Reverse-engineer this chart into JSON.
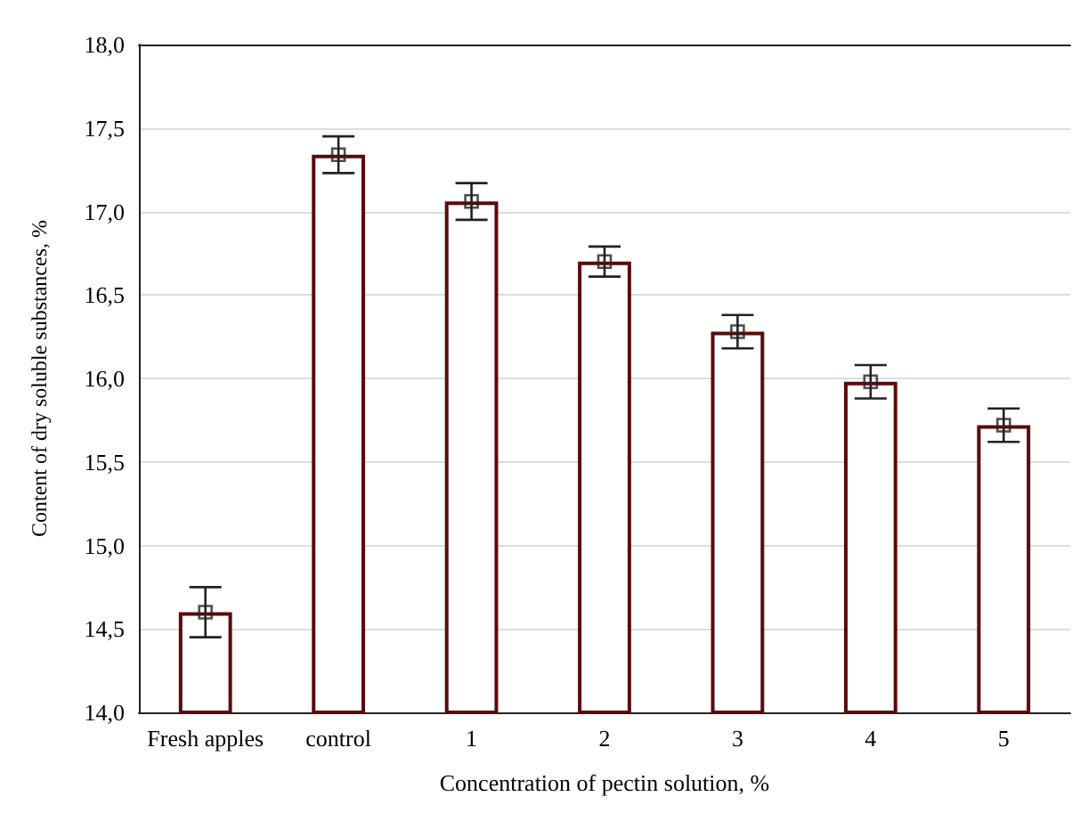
{
  "chart_data": {
    "type": "bar",
    "xlabel": "Concentration of pectin solution, %",
    "ylabel": "Content of dry soluble substances, %",
    "categories": [
      "Fresh apples",
      "control",
      "1",
      "2",
      "3",
      "4",
      "5"
    ],
    "series": [
      {
        "color": "#5a0a0a",
        "values": [
          14.6,
          17.34,
          17.06,
          16.7,
          16.28,
          15.98,
          15.72
        ],
        "errors": [
          0.15,
          0.11,
          0.11,
          0.09,
          0.1,
          0.1,
          0.1
        ]
      },
      {
        "type": "scatter",
        "color": "#222222",
        "marker": "square",
        "x": [
          "Fresh apples",
          "control",
          "1",
          "2",
          "3",
          "4",
          "5"
        ],
        "values": [
          14.6,
          17.34,
          17.06,
          16.7,
          16.28,
          15.98,
          15.72
        ]
      }
    ],
    "ylim": [
      14,
      18
    ],
    "yticks": [
      {
        "value": 14,
        "label": "14,0"
      },
      {
        "value": 14.5,
        "label": "14,5"
      },
      {
        "value": 15,
        "label": "15,0"
      },
      {
        "value": 15.5,
        "label": "15,5"
      },
      {
        "value": 16,
        "label": "16,0"
      },
      {
        "value": 16.5,
        "label": "16,5"
      },
      {
        "value": 17,
        "label": "17,0"
      },
      {
        "value": 17.5,
        "label": "17,5"
      },
      {
        "value": 18,
        "label": "18,0"
      }
    ],
    "grid": "y"
  }
}
